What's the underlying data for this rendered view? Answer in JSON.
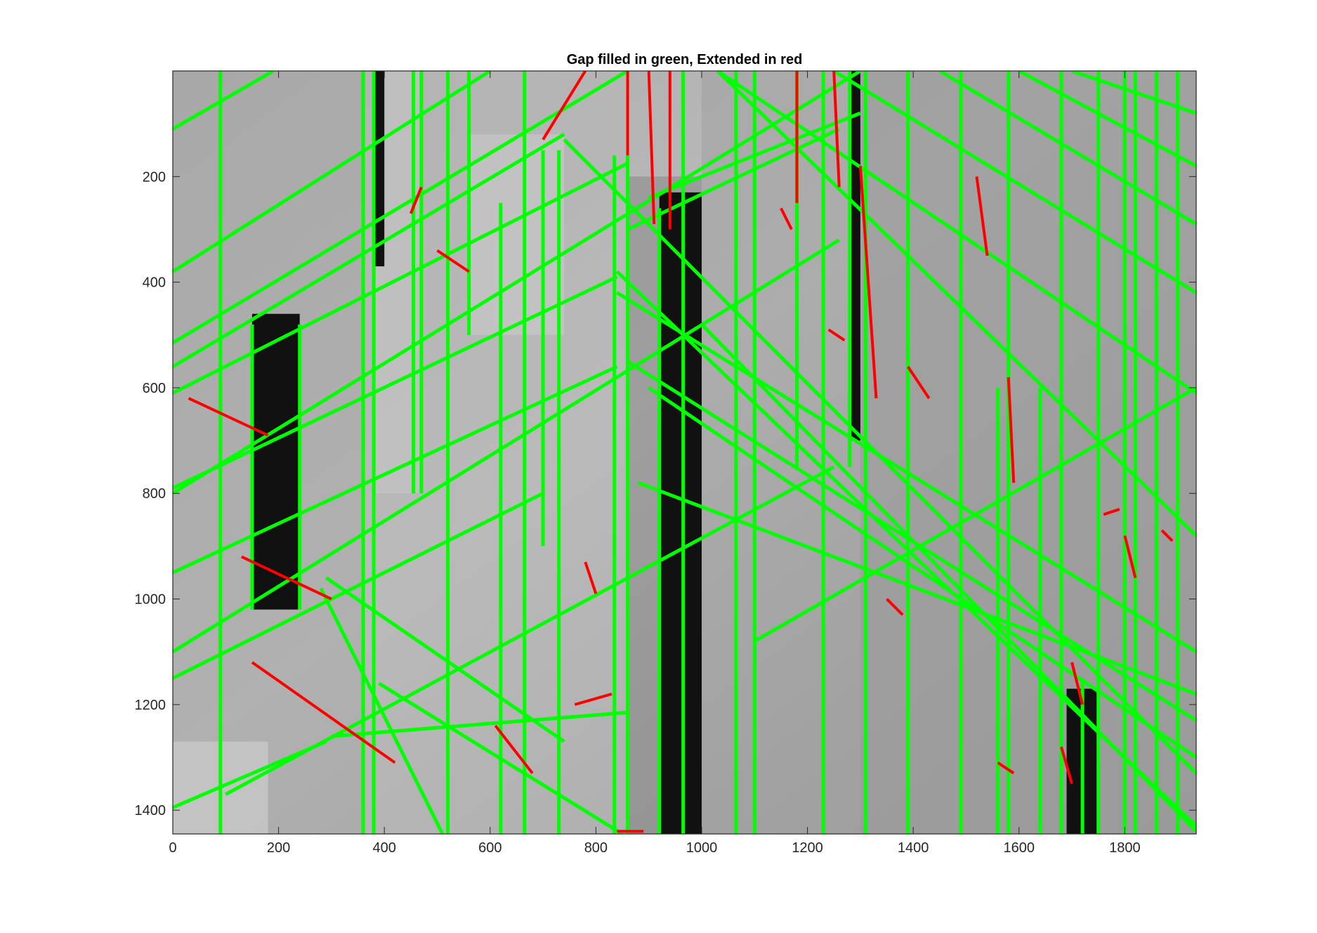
{
  "chart_data": {
    "type": "image",
    "title": "Gap filled in green, Extended in red",
    "xlabel": "",
    "ylabel": "",
    "xlim": [
      0,
      1935
    ],
    "ylim": [
      1445,
      0
    ],
    "y_reversed": true,
    "x_ticks": [
      0,
      200,
      400,
      600,
      800,
      1000,
      1200,
      1400,
      1600,
      1800
    ],
    "y_ticks": [
      200,
      400,
      600,
      800,
      1000,
      1200,
      1400
    ],
    "grid": false,
    "image": "grayscale photo of building facade with detected line segments overlaid",
    "series": [
      {
        "name": "Gap filled",
        "color": "#00ff00"
      },
      {
        "name": "Extended",
        "color": "#ff0000"
      }
    ],
    "segments_green": [
      [
        0,
        110,
        190,
        0
      ],
      [
        0,
        380,
        600,
        0
      ],
      [
        0,
        515,
        860,
        0
      ],
      [
        0,
        560,
        740,
        120
      ],
      [
        0,
        610,
        860,
        175
      ],
      [
        0,
        790,
        840,
        390
      ],
      [
        0,
        800,
        1300,
        0
      ],
      [
        0,
        950,
        840,
        560
      ],
      [
        0,
        1100,
        1260,
        320
      ],
      [
        0,
        1150,
        700,
        800
      ],
      [
        0,
        1395,
        290,
        1270
      ],
      [
        100,
        1370,
        1250,
        750
      ],
      [
        290,
        960,
        740,
        1270
      ],
      [
        280,
        980,
        510,
        1445
      ],
      [
        300,
        1260,
        860,
        1215
      ],
      [
        390,
        1160,
        850,
        1445
      ],
      [
        740,
        130,
        1935,
        1330
      ],
      [
        840,
        380,
        1935,
        1430
      ],
      [
        860,
        300,
        1260,
        110
      ],
      [
        840,
        420,
        1935,
        1100
      ],
      [
        860,
        550,
        1935,
        1230
      ],
      [
        1030,
        0,
        1935,
        610
      ],
      [
        900,
        240,
        1300,
        80
      ],
      [
        1030,
        0,
        1935,
        880
      ],
      [
        1250,
        0,
        1935,
        420
      ],
      [
        1450,
        0,
        1935,
        290
      ],
      [
        1600,
        0,
        1935,
        180
      ],
      [
        1700,
        0,
        1935,
        80
      ],
      [
        1000,
        480,
        1935,
        1440
      ],
      [
        1100,
        1080,
        1935,
        600
      ],
      [
        900,
        600,
        1935,
        1300
      ],
      [
        880,
        780,
        1935,
        1180
      ],
      [
        90,
        0,
        90,
        1445
      ],
      [
        150,
        480,
        150,
        1020
      ],
      [
        240,
        480,
        240,
        1020
      ],
      [
        360,
        0,
        360,
        1445
      ],
      [
        380,
        0,
        380,
        1445
      ],
      [
        455,
        0,
        455,
        800
      ],
      [
        470,
        0,
        470,
        800
      ],
      [
        520,
        0,
        520,
        1445
      ],
      [
        620,
        250,
        620,
        1445
      ],
      [
        665,
        0,
        665,
        1445
      ],
      [
        730,
        150,
        730,
        1445
      ],
      [
        835,
        160,
        835,
        1445
      ],
      [
        860,
        160,
        860,
        1445
      ],
      [
        920,
        260,
        920,
        1445
      ],
      [
        965,
        0,
        965,
        1445
      ],
      [
        1065,
        0,
        1065,
        1445
      ],
      [
        1100,
        0,
        1100,
        1445
      ],
      [
        1180,
        0,
        1180,
        750
      ],
      [
        1230,
        0,
        1230,
        1445
      ],
      [
        1280,
        0,
        1280,
        750
      ],
      [
        1310,
        0,
        1310,
        1445
      ],
      [
        1390,
        0,
        1390,
        1445
      ],
      [
        1490,
        0,
        1490,
        1445
      ],
      [
        1580,
        0,
        1580,
        1445
      ],
      [
        1680,
        0,
        1680,
        1445
      ],
      [
        1750,
        0,
        1750,
        1445
      ],
      [
        1800,
        0,
        1800,
        1445
      ],
      [
        1820,
        0,
        1820,
        1445
      ],
      [
        1860,
        0,
        1860,
        1445
      ],
      [
        1900,
        0,
        1900,
        1445
      ],
      [
        560,
        0,
        560,
        500
      ],
      [
        700,
        150,
        700,
        900
      ],
      [
        1560,
        600,
        1560,
        1445
      ],
      [
        1640,
        600,
        1640,
        1445
      ],
      [
        1720,
        1150,
        1720,
        1445
      ]
    ],
    "segments_red": [
      [
        30,
        620,
        180,
        690
      ],
      [
        130,
        920,
        300,
        1000
      ],
      [
        150,
        1120,
        420,
        1310
      ],
      [
        780,
        0,
        700,
        130
      ],
      [
        860,
        160,
        860,
        0
      ],
      [
        900,
        0,
        910,
        290
      ],
      [
        940,
        0,
        940,
        300
      ],
      [
        1180,
        0,
        1180,
        250
      ],
      [
        1250,
        0,
        1260,
        220
      ],
      [
        1300,
        180,
        1330,
        620
      ],
      [
        1390,
        560,
        1430,
        620
      ],
      [
        1580,
        580,
        1590,
        780
      ],
      [
        1700,
        1120,
        1720,
        1200
      ],
      [
        1800,
        880,
        1820,
        960
      ],
      [
        1680,
        1280,
        1700,
        1350
      ],
      [
        1520,
        200,
        1540,
        350
      ],
      [
        500,
        340,
        560,
        380
      ],
      [
        610,
        1240,
        680,
        1330
      ],
      [
        760,
        1200,
        830,
        1180
      ],
      [
        1240,
        490,
        1270,
        510
      ],
      [
        1350,
        1000,
        1380,
        1030
      ],
      [
        1560,
        1310,
        1590,
        1330
      ],
      [
        1760,
        840,
        1790,
        830
      ],
      [
        1870,
        870,
        1890,
        890
      ],
      [
        450,
        270,
        470,
        220
      ],
      [
        780,
        930,
        800,
        990
      ],
      [
        840,
        1440,
        890,
        1440
      ],
      [
        1150,
        260,
        1170,
        300
      ]
    ]
  }
}
